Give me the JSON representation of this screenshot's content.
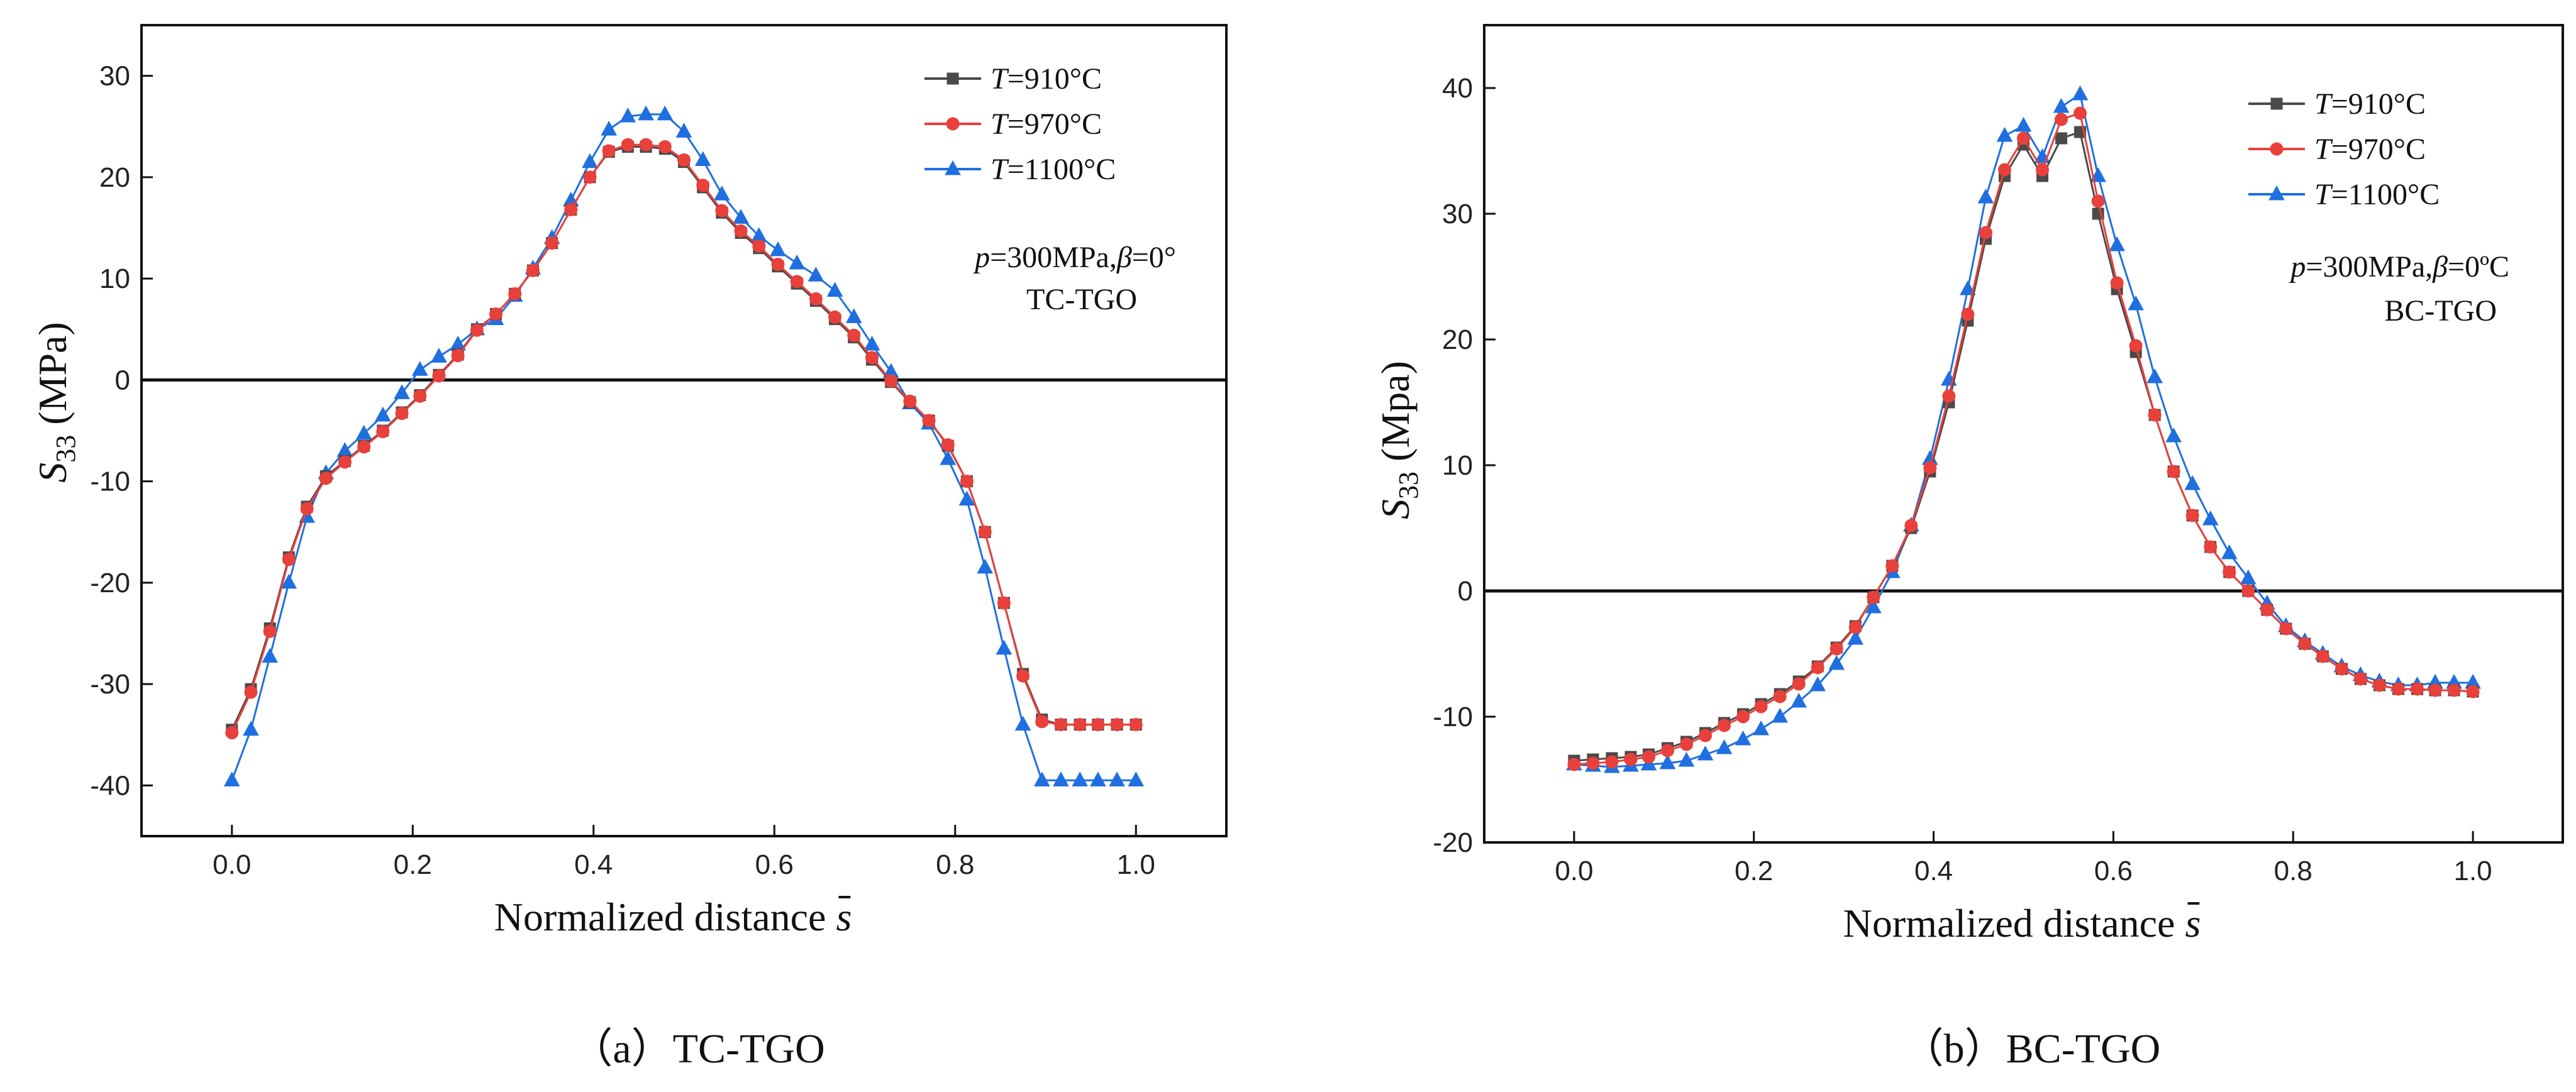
{
  "chart_data": [
    {
      "id": "a",
      "type": "line",
      "caption": "（a）TC-TGO",
      "xlabel": "Normalized distance",
      "xlabel_symbol": "s",
      "ylabel": "S",
      "ylabel_sub": "33",
      "ylabel_unit": " (MPa)",
      "xlim": [
        -0.1,
        1.1
      ],
      "ylim": [
        -45,
        35
      ],
      "xticks": [
        0.0,
        0.2,
        0.4,
        0.6,
        0.8,
        1.0
      ],
      "xtick_labels": [
        "0.0",
        "0.2",
        "0.4",
        "0.6",
        "0.8",
        "1.0"
      ],
      "yticks": [
        -40,
        -30,
        -20,
        -10,
        0,
        10,
        20,
        30
      ],
      "ytick_labels": [
        "-40",
        "-30",
        "-20",
        "-10",
        "0",
        "10",
        "20",
        "30"
      ],
      "zero_line": true,
      "legend_position": "top-right",
      "annotations": [
        "p=300MPa,β=0°",
        "TC-TGO"
      ],
      "x": [
        0.0,
        0.021,
        0.042,
        0.063,
        0.083,
        0.104,
        0.125,
        0.146,
        0.167,
        0.188,
        0.208,
        0.229,
        0.25,
        0.271,
        0.292,
        0.313,
        0.333,
        0.354,
        0.375,
        0.396,
        0.417,
        0.438,
        0.458,
        0.479,
        0.5,
        0.521,
        0.542,
        0.563,
        0.583,
        0.604,
        0.625,
        0.646,
        0.667,
        0.688,
        0.708,
        0.729,
        0.75,
        0.771,
        0.792,
        0.813,
        0.833,
        0.854,
        0.875,
        0.896,
        0.917,
        0.938,
        0.958,
        0.979,
        1.0
      ],
      "series": [
        {
          "name": "T=910°C",
          "label_var": "T",
          "label_rest": "=910°C",
          "color": "#4a4a4a",
          "marker": "square",
          "values": [
            -34.5,
            -30.5,
            -24.5,
            -17.5,
            -12.5,
            -9.5,
            -8.0,
            -6.5,
            -5.0,
            -3.2,
            -1.5,
            0.5,
            2.5,
            5.0,
            6.5,
            8.5,
            10.8,
            13.5,
            16.8,
            20.0,
            22.5,
            23.0,
            23.0,
            22.8,
            21.5,
            19.0,
            16.5,
            14.5,
            13.0,
            11.2,
            9.5,
            7.8,
            6.0,
            4.2,
            2.0,
            -0.2,
            -2.2,
            -4.0,
            -6.5,
            -10.0,
            -15.0,
            -22.0,
            -29.0,
            -33.5,
            -34.0,
            -34.0,
            -34.0,
            -34.0,
            -34.0
          ]
        },
        {
          "name": "T=970°C",
          "label_var": "T",
          "label_rest": "=970°C",
          "color": "#e8413c",
          "marker": "circle",
          "values": [
            -34.8,
            -30.8,
            -24.8,
            -17.7,
            -12.7,
            -9.7,
            -8.1,
            -6.6,
            -5.1,
            -3.3,
            -1.6,
            0.4,
            2.4,
            4.9,
            6.5,
            8.5,
            10.8,
            13.5,
            16.8,
            20.0,
            22.6,
            23.2,
            23.2,
            23.0,
            21.7,
            19.2,
            16.7,
            14.7,
            13.2,
            11.4,
            9.7,
            8.0,
            6.2,
            4.4,
            2.2,
            -0.1,
            -2.1,
            -4.0,
            -6.4,
            -10.0,
            -15.0,
            -22.0,
            -29.2,
            -33.7,
            -34.0,
            -34.0,
            -34.0,
            -34.0,
            -34.0
          ]
        },
        {
          "name": "T=1100°C",
          "label_var": "T",
          "label_rest": "=1100°C",
          "color": "#1f6fe0",
          "marker": "triangle",
          "values": [
            -39.5,
            -34.5,
            -27.3,
            -20.0,
            -13.5,
            -9.2,
            -7.0,
            -5.3,
            -3.5,
            -1.3,
            1.0,
            2.3,
            3.5,
            5.0,
            6.0,
            8.3,
            11.0,
            14.0,
            17.7,
            21.5,
            24.7,
            26.0,
            26.2,
            26.2,
            24.5,
            21.7,
            18.3,
            16.0,
            14.2,
            12.8,
            11.5,
            10.3,
            8.8,
            6.2,
            3.5,
            0.8,
            -2.3,
            -4.3,
            -7.8,
            -11.8,
            -18.5,
            -26.5,
            -34.0,
            -39.5,
            -39.5,
            -39.5,
            -39.5,
            -39.5,
            -39.5
          ]
        }
      ]
    },
    {
      "id": "b",
      "type": "line",
      "caption": "（b）BC-TGO",
      "xlabel": "Normalized distance",
      "xlabel_symbol": "s",
      "ylabel": "S",
      "ylabel_sub": "33",
      "ylabel_unit": " (Mpa)",
      "xlim": [
        -0.1,
        1.1
      ],
      "ylim": [
        -20,
        45
      ],
      "xticks": [
        0.0,
        0.2,
        0.4,
        0.6,
        0.8,
        1.0
      ],
      "xtick_labels": [
        "0.0",
        "0.2",
        "0.4",
        "0.6",
        "0.8",
        "1.0"
      ],
      "yticks": [
        -20,
        -10,
        0,
        10,
        20,
        30,
        40
      ],
      "ytick_labels": [
        "-20",
        "-10",
        "0",
        "10",
        "20",
        "30",
        "40"
      ],
      "zero_line": true,
      "legend_position": "top-right",
      "annotations": [
        "p=300MPa,β=0ºC",
        "BC-TGO"
      ],
      "x": [
        0.0,
        0.021,
        0.042,
        0.063,
        0.083,
        0.104,
        0.125,
        0.146,
        0.167,
        0.188,
        0.208,
        0.229,
        0.25,
        0.271,
        0.292,
        0.313,
        0.333,
        0.354,
        0.375,
        0.396,
        0.417,
        0.438,
        0.458,
        0.479,
        0.5,
        0.521,
        0.542,
        0.563,
        0.583,
        0.604,
        0.625,
        0.646,
        0.667,
        0.688,
        0.708,
        0.729,
        0.75,
        0.771,
        0.792,
        0.813,
        0.833,
        0.854,
        0.875,
        0.896,
        0.917,
        0.938,
        0.958,
        0.979,
        1.0
      ],
      "series": [
        {
          "name": "T=910°C",
          "label_var": "T",
          "label_rest": "=910°C",
          "color": "#4a4a4a",
          "marker": "square",
          "values": [
            -13.5,
            -13.4,
            -13.3,
            -13.2,
            -13.0,
            -12.5,
            -12.0,
            -11.3,
            -10.5,
            -9.8,
            -9.0,
            -8.2,
            -7.2,
            -6.0,
            -4.5,
            -2.8,
            -0.5,
            2.0,
            5.0,
            9.5,
            15.0,
            21.5,
            28.0,
            33.0,
            35.5,
            33.0,
            36.0,
            36.5,
            30.0,
            24.0,
            19.0,
            14.0,
            9.5,
            6.0,
            3.5,
            1.5,
            0.0,
            -1.5,
            -3.0,
            -4.2,
            -5.2,
            -6.2,
            -7.0,
            -7.5,
            -7.8,
            -7.8,
            -7.9,
            -7.9,
            -8.0
          ]
        },
        {
          "name": "T=970°C",
          "label_var": "T",
          "label_rest": "=970°C",
          "color": "#e8413c",
          "marker": "circle",
          "values": [
            -13.8,
            -13.7,
            -13.6,
            -13.4,
            -13.2,
            -12.7,
            -12.2,
            -11.5,
            -10.7,
            -10.0,
            -9.2,
            -8.4,
            -7.4,
            -6.1,
            -4.6,
            -2.9,
            -0.5,
            2.0,
            5.2,
            9.8,
            15.5,
            22.0,
            28.5,
            33.5,
            36.0,
            33.5,
            37.5,
            38.0,
            31.0,
            24.5,
            19.5,
            14.0,
            9.5,
            6.0,
            3.5,
            1.5,
            0.0,
            -1.5,
            -3.0,
            -4.2,
            -5.2,
            -6.2,
            -7.0,
            -7.5,
            -7.8,
            -7.8,
            -7.9,
            -7.9,
            -8.0
          ]
        },
        {
          "name": "T=1100°C",
          "label_var": "T",
          "label_rest": "=1100°C",
          "color": "#1f6fe0",
          "marker": "triangle",
          "values": [
            -13.8,
            -13.9,
            -14.0,
            -13.9,
            -13.8,
            -13.7,
            -13.5,
            -13.0,
            -12.5,
            -11.8,
            -11.0,
            -10.0,
            -8.8,
            -7.5,
            -5.8,
            -3.8,
            -1.3,
            1.5,
            5.2,
            10.5,
            16.8,
            24.0,
            31.3,
            36.2,
            37.0,
            34.5,
            38.5,
            39.5,
            33.0,
            27.5,
            22.8,
            17.0,
            12.3,
            8.5,
            5.7,
            3.0,
            1.0,
            -1.0,
            -2.8,
            -4.0,
            -5.0,
            -6.0,
            -6.7,
            -7.2,
            -7.5,
            -7.5,
            -7.3,
            -7.3,
            -7.3
          ]
        }
      ]
    }
  ]
}
